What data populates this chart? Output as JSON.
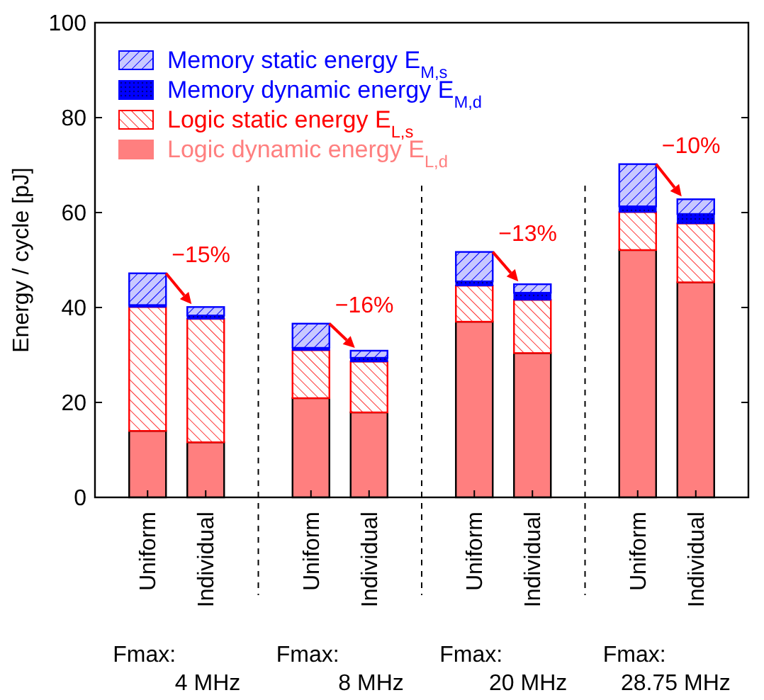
{
  "chart_data": {
    "type": "bar",
    "stacked": true,
    "ylabel": "Energy / cycle [pJ]",
    "ylim": [
      0,
      100
    ],
    "yticks": [
      0,
      20,
      40,
      60,
      80,
      100
    ],
    "legend": "top left",
    "grid": false,
    "categories": [
      "Uniform",
      "Individual",
      "Uniform",
      "Individual",
      "Uniform",
      "Individual",
      "Uniform",
      "Individual"
    ],
    "series": [
      {
        "name": "Logic dynamic energy E$_{L,d}$",
        "color": "#ff7f7f",
        "values": [
          14.0,
          11.6,
          20.9,
          17.9,
          37.0,
          30.4,
          52.1,
          45.3
        ]
      },
      {
        "name": "Logic static energy E$_{L,s}$",
        "color": "#ff0000",
        "values": [
          26.1,
          26.0,
          10.1,
          10.7,
          7.6,
          11.2,
          8.0,
          12.4
        ]
      },
      {
        "name": "Memory dynamic energy E$_{M,d}$",
        "color": "#0000ff",
        "values": [
          0.4,
          0.7,
          0.5,
          0.8,
          0.9,
          1.5,
          1.2,
          2.0
        ]
      },
      {
        "name": "Memory static energy E$_{M,s}$",
        "color": "#0000ff",
        "values": [
          6.7,
          1.8,
          5.1,
          1.5,
          6.2,
          1.8,
          8.9,
          3.1
        ]
      }
    ],
    "annotations": [
      "−15%",
      "−16%",
      "−13%",
      "−10%",
      "Fmax:\n4 MHz",
      "Fmax:\n8 MHz",
      "Fmax:\n20 MHz",
      "Fmax:\n28.75 MHz"
    ]
  }
}
